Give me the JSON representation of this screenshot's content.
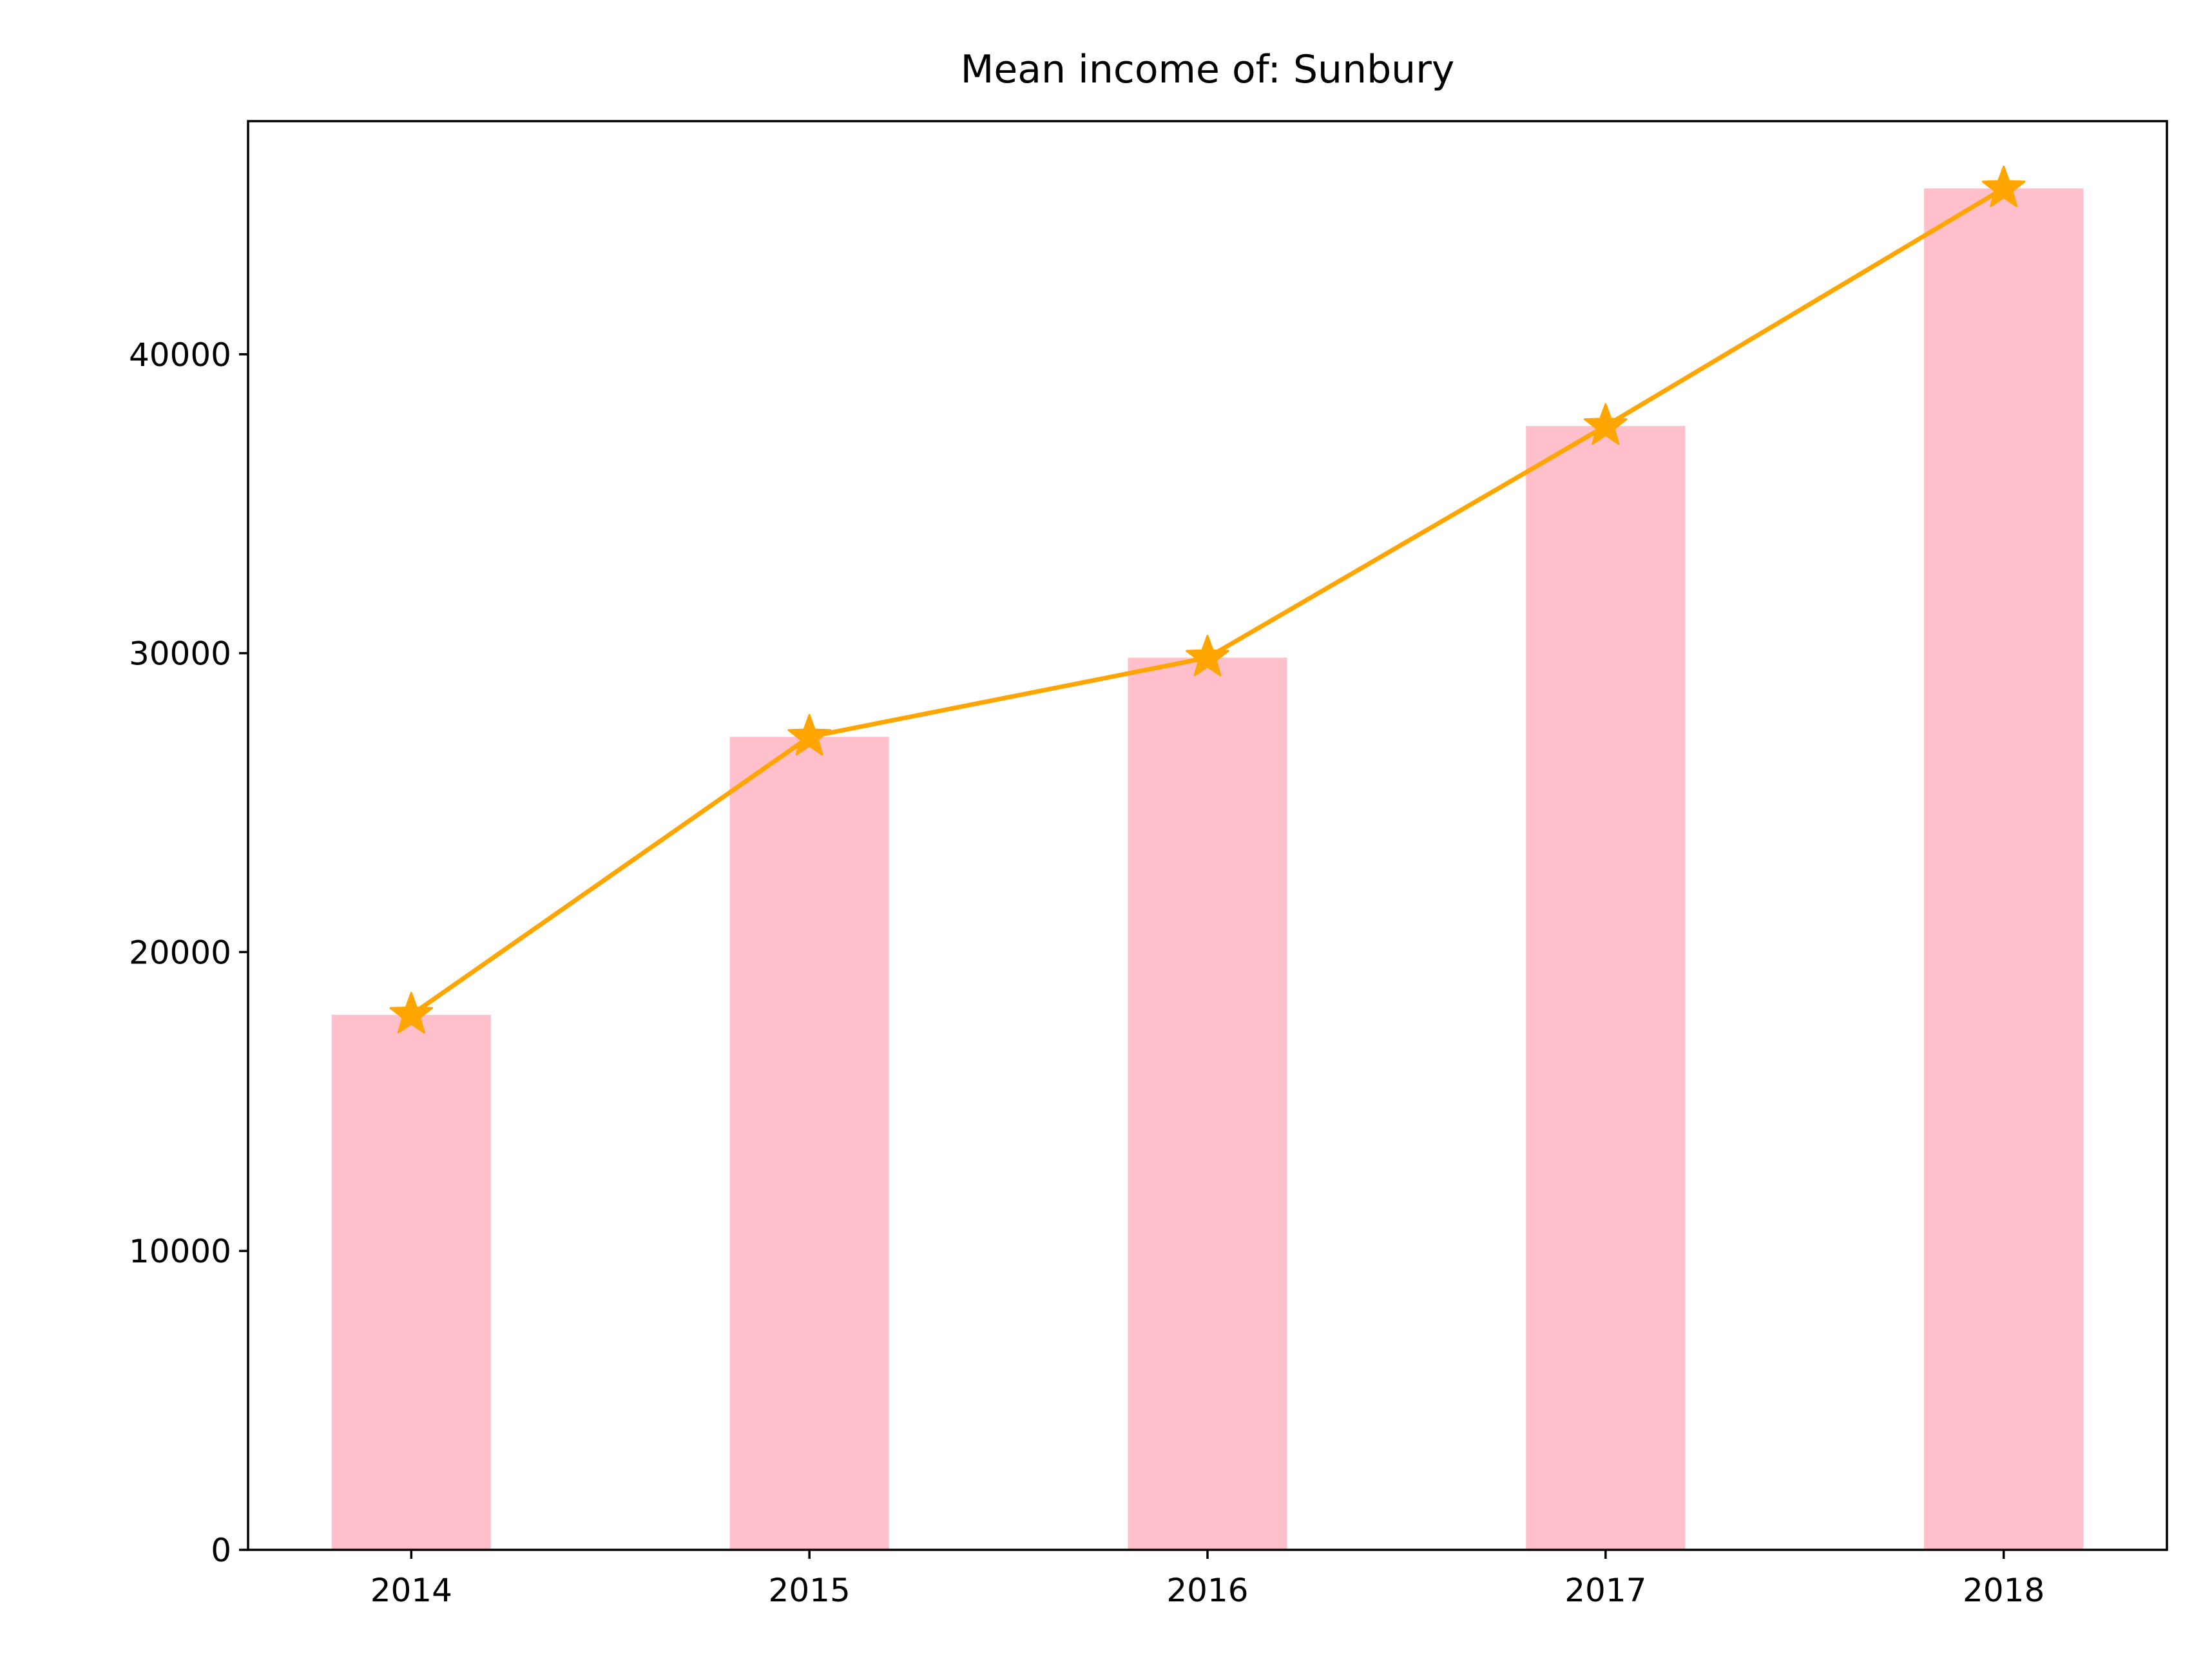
{
  "chart_data": {
    "type": "bar",
    "title": "Mean income of: Sunbury",
    "xlabel": "",
    "ylabel": "",
    "categories": [
      "2014",
      "2015",
      "2016",
      "2017",
      "2018"
    ],
    "series": [
      {
        "type": "bar",
        "values": [
          17900,
          27200,
          29850,
          37600,
          45550
        ]
      },
      {
        "type": "line",
        "marker": "star",
        "values": [
          17900,
          27200,
          29850,
          37600,
          45550
        ]
      }
    ],
    "ylim": [
      0,
      47800
    ],
    "yticks": [
      0,
      10000,
      20000,
      30000,
      40000
    ],
    "grid": false,
    "colors": {
      "bar": "#ffc0cb",
      "line": "#ffa500"
    }
  }
}
